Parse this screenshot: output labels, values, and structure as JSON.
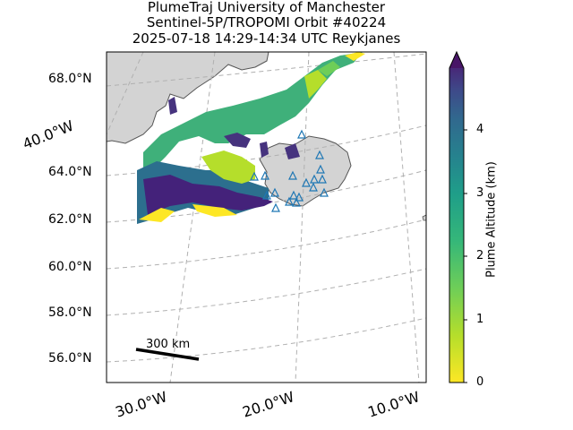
{
  "title": {
    "line1": "PlumeTraj    University of Manchester",
    "line2": "Sentinel-5P/TROPOMI Orbit #40224",
    "line3": "2025-07-18   14:29-14:34 UTC   Reykjanes"
  },
  "lat_labels": [
    "68.0°N",
    "64.0°N",
    "62.0°N",
    "60.0°N",
    "58.0°N",
    "56.0°N"
  ],
  "lon_labels": [
    "40.0°W",
    "30.0°W",
    "20.0°W",
    "10.0°W"
  ],
  "colorbar": {
    "label": "Plume Altitude (km)",
    "ticks": [
      "0",
      "1",
      "2",
      "3",
      "4"
    ],
    "range_km": [
      0,
      5
    ],
    "extend": "max",
    "colormap": "viridis_r"
  },
  "scale_bar": {
    "label": "300 km"
  },
  "colors": {
    "land": "#d3d3d3",
    "coast": "#555555",
    "grid": "#b0b0b0",
    "volcano_marker": "#1f77b4"
  }
}
